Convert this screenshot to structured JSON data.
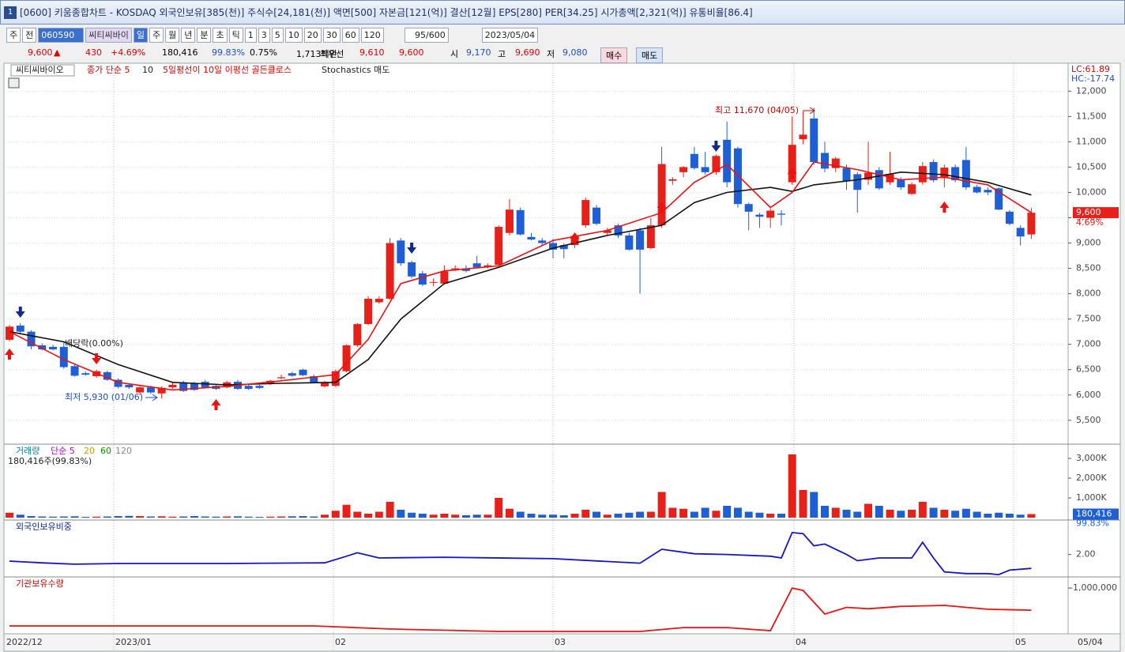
{
  "title_bar": {
    "icon": "1",
    "text": "[0600] 키움종합차트 - KOSDAQ 외국인보유[385(천)] 주식수[24,181(천)] 액면[500] 자본금[121(억)] 결산[12월] EPS[280] PER[34.25] 시가총액[2,321(억)] 유통비율[86.4]"
  },
  "toolbar": {
    "items": [
      "주",
      "전",
      "060590",
      "씨티씨바이",
      "일",
      "주",
      "월",
      "년",
      "분",
      "초",
      "틱",
      "1",
      "3",
      "5",
      "10",
      "20",
      "30",
      "60",
      "120",
      "95/600",
      "2023/05/04"
    ]
  },
  "info_bar": {
    "items": [
      "9,600",
      "▲",
      "430",
      "+4.69%",
      "180,416",
      "99.83%",
      "0.75%",
      "1,713백만",
      "최우선",
      "9,610",
      "9,600",
      "시",
      "9,170",
      "고",
      "9,690",
      "저",
      "9,080",
      "매수",
      "매도"
    ]
  },
  "chart": {
    "legend": [
      "씨티씨바이오",
      "종가 단순 5",
      "10",
      "5일평선이 10일 이평선 골든클로스",
      "Stochastics 매도"
    ],
    "corner_labels": [
      "LC:61.89",
      "HC:-17.74"
    ],
    "price_tag": [
      "9,600",
      "4.69%"
    ],
    "annotations": [
      "최고 11,670 (04/05)",
      "최저 5,930 (01/06)",
      "배당락(0.00%)"
    ],
    "ylim": [
      5060,
      12520
    ],
    "yticks": [
      {
        "value": 12000,
        "label": "12,000"
      },
      {
        "value": 11500,
        "label": "11,500"
      },
      {
        "value": 11000,
        "label": "11,000"
      },
      {
        "value": 10500,
        "label": "10,500"
      },
      {
        "value": 10000,
        "label": "10,000"
      },
      {
        "value": 9500,
        "label": "9,500"
      },
      {
        "value": 9000,
        "label": "9,000"
      },
      {
        "value": 8500,
        "label": "8,500"
      },
      {
        "value": 8000,
        "label": "8,000"
      },
      {
        "value": 7500,
        "label": "7,500"
      },
      {
        "value": 7000,
        "label": "7,000"
      },
      {
        "value": 6500,
        "label": "6,500"
      },
      {
        "value": 6000,
        "label": "6,000"
      },
      {
        "value": 5500,
        "label": "5,500"
      }
    ],
    "candles": [
      [
        7090,
        7380,
        7060,
        7350
      ],
      [
        7370,
        7420,
        7220,
        7250
      ],
      [
        7250,
        7280,
        6900,
        6960
      ],
      [
        6980,
        7020,
        6880,
        6900
      ],
      [
        6950,
        6990,
        6880,
        6900
      ],
      [
        6950,
        7050,
        6520,
        6550
      ],
      [
        6570,
        6600,
        6360,
        6380
      ],
      [
        6430,
        6460,
        6380,
        6400
      ],
      [
        6370,
        6500,
        6340,
        6470
      ],
      [
        6450,
        6480,
        6280,
        6300
      ],
      [
        6300,
        6330,
        6130,
        6160
      ],
      [
        6200,
        6230,
        6120,
        6150
      ],
      [
        6050,
        6200,
        6000,
        6150
      ],
      [
        6150,
        6180,
        6020,
        6050
      ],
      [
        6030,
        6170,
        5930,
        6140
      ],
      [
        6150,
        6260,
        6120,
        6200
      ],
      [
        6250,
        6280,
        6060,
        6080
      ],
      [
        6230,
        6260,
        6080,
        6100
      ],
      [
        6260,
        6300,
        6130,
        6150
      ],
      [
        6180,
        6210,
        6100,
        6120
      ],
      [
        6150,
        6280,
        6130,
        6250
      ],
      [
        6260,
        6300,
        6100,
        6120
      ],
      [
        6180,
        6210,
        6100,
        6120
      ],
      [
        6180,
        6200,
        6120,
        6140
      ],
      [
        6220,
        6300,
        6200,
        6280
      ],
      [
        6330,
        6400,
        6310,
        6350
      ],
      [
        6430,
        6460,
        6360,
        6380
      ],
      [
        6500,
        6520,
        6370,
        6390
      ],
      [
        6370,
        6400,
        6230,
        6250
      ],
      [
        6170,
        6280,
        6150,
        6250
      ],
      [
        6180,
        6500,
        6160,
        6470
      ],
      [
        6470,
        7000,
        6450,
        6980
      ],
      [
        6980,
        7420,
        6950,
        7400
      ],
      [
        7400,
        7950,
        7380,
        7900
      ],
      [
        7830,
        7950,
        7800,
        7900
      ],
      [
        7900,
        9100,
        7880,
        9000
      ],
      [
        9050,
        9100,
        8550,
        8600
      ],
      [
        8620,
        8650,
        8300,
        8340
      ],
      [
        8400,
        8450,
        8150,
        8180
      ],
      [
        8220,
        8300,
        8150,
        8230
      ],
      [
        8200,
        8560,
        8180,
        8440
      ],
      [
        8480,
        8560,
        8450,
        8500
      ],
      [
        8500,
        8560,
        8420,
        8450
      ],
      [
        8600,
        8750,
        8500,
        8520
      ],
      [
        8530,
        8600,
        8500,
        8560
      ],
      [
        8570,
        9350,
        8550,
        9320
      ],
      [
        9200,
        9870,
        9150,
        9660
      ],
      [
        9650,
        9700,
        9150,
        9170
      ],
      [
        9120,
        9200,
        9050,
        9070
      ],
      [
        9050,
        9100,
        8950,
        9000
      ],
      [
        9000,
        9080,
        8700,
        8870
      ],
      [
        8960,
        9000,
        8700,
        8880
      ],
      [
        8960,
        9150,
        8900,
        9140
      ],
      [
        9350,
        9900,
        9300,
        9850
      ],
      [
        9700,
        9750,
        9350,
        9380
      ],
      [
        9200,
        9300,
        9150,
        9250
      ],
      [
        9350,
        9380,
        9100,
        9150
      ],
      [
        9150,
        9200,
        8850,
        8870
      ],
      [
        9250,
        9300,
        8000,
        8870
      ],
      [
        8900,
        9500,
        8880,
        9350
      ],
      [
        9350,
        10900,
        9300,
        10560
      ],
      [
        10230,
        10300,
        10150,
        10260
      ],
      [
        10400,
        10520,
        10300,
        10500
      ],
      [
        10760,
        10900,
        10450,
        10480
      ],
      [
        10500,
        10800,
        10350,
        10400
      ],
      [
        10400,
        10750,
        10350,
        10720
      ],
      [
        11040,
        11400,
        10100,
        10200
      ],
      [
        10870,
        10900,
        9700,
        9770
      ],
      [
        9770,
        9800,
        9250,
        9620
      ],
      [
        9560,
        9600,
        9300,
        9520
      ],
      [
        9500,
        9680,
        9300,
        9640
      ],
      [
        9580,
        9650,
        9350,
        9560
      ],
      [
        10200,
        11500,
        10150,
        10940
      ],
      [
        11050,
        11600,
        10950,
        11140
      ],
      [
        11460,
        11670,
        10550,
        10600
      ],
      [
        10780,
        11000,
        10400,
        10470
      ],
      [
        10480,
        10700,
        10400,
        10670
      ],
      [
        10480,
        10550,
        10050,
        10220
      ],
      [
        10360,
        10400,
        9600,
        10050
      ],
      [
        10250,
        11000,
        10150,
        10390
      ],
      [
        10440,
        10500,
        10050,
        10080
      ],
      [
        10200,
        10800,
        10150,
        10360
      ],
      [
        10250,
        10300,
        10050,
        10100
      ],
      [
        9970,
        10200,
        9950,
        10160
      ],
      [
        10200,
        10600,
        10150,
        10520
      ],
      [
        10600,
        10650,
        10200,
        10240
      ],
      [
        10280,
        10550,
        10100,
        10490
      ],
      [
        10500,
        10550,
        10200,
        10240
      ],
      [
        10640,
        10900,
        10050,
        10100
      ],
      [
        10110,
        10150,
        9980,
        10000
      ],
      [
        10050,
        10100,
        9950,
        10000
      ],
      [
        10080,
        10100,
        9650,
        9660
      ],
      [
        9620,
        9650,
        9350,
        9380
      ],
      [
        9300,
        9350,
        8950,
        9130
      ],
      [
        9170,
        9690,
        9080,
        9600
      ]
    ],
    "ma_index": [
      0,
      5,
      10,
      15,
      20,
      25,
      30,
      33,
      36,
      40,
      45,
      50,
      55,
      60,
      63,
      66,
      70,
      72,
      74,
      78,
      82,
      86,
      90,
      94
    ],
    "ma5": [
      7250,
      6700,
      6250,
      6100,
      6170,
      6280,
      6400,
      7100,
      8200,
      8450,
      8550,
      9050,
      9250,
      9600,
      10200,
      10550,
      9700,
      10000,
      10600,
      10450,
      10250,
      10300,
      10150,
      9600
    ],
    "ma10": [
      7250,
      7050,
      6600,
      6250,
      6200,
      6230,
      6250,
      6700,
      7500,
      8200,
      8520,
      8900,
      9150,
      9350,
      9800,
      10000,
      10100,
      10020,
      10150,
      10250,
      10400,
      10350,
      10200,
      9950
    ],
    "dates": [
      "2022/12",
      "2023/01",
      "02",
      "03",
      "04",
      "05",
      "05/04"
    ]
  },
  "volume": {
    "legend": [
      "거래량",
      "단순 5",
      "20",
      "60",
      "120"
    ],
    "caption": "180,416주(99.83%)",
    "tag": [
      "180,416",
      "99.83%"
    ],
    "ylim": [
      0,
      3600000
    ],
    "yticks": [
      {
        "value": 3000000,
        "label": "3,000K"
      },
      {
        "value": 2000000,
        "label": "2,000K"
      },
      {
        "value": 1000000,
        "label": "1,000K"
      }
    ],
    "values": [
      250000,
      150000,
      80000,
      60000,
      50000,
      60000,
      70000,
      40000,
      50000,
      60000,
      80000,
      90000,
      80000,
      60000,
      70000,
      50000,
      60000,
      80000,
      60000,
      50000,
      60000,
      70000,
      50000,
      40000,
      50000,
      60000,
      70000,
      80000,
      60000,
      150000,
      350000,
      650000,
      300000,
      200000,
      300000,
      800000,
      400000,
      250000,
      200000,
      150000,
      200000,
      150000,
      120000,
      150000,
      150000,
      1000000,
      450000,
      300000,
      200000,
      150000,
      150000,
      120000,
      200000,
      400000,
      300000,
      150000,
      200000,
      250000,
      300000,
      300000,
      1300000,
      500000,
      450000,
      300000,
      500000,
      350000,
      600000,
      500000,
      300000,
      250000,
      200000,
      200000,
      3200000,
      1400000,
      1300000,
      600000,
      500000,
      400000,
      300000,
      700000,
      600000,
      400000,
      350000,
      400000,
      800000,
      500000,
      400000,
      350000,
      450000,
      300000,
      200000,
      250000,
      200000,
      150000,
      180416
    ]
  },
  "foreign": {
    "label": "외국인보유비중",
    "ylim": [
      1.4,
      2.9
    ],
    "yticks": [
      {
        "value": 2,
        "label": "2.00"
      }
    ],
    "index": [
      0,
      3,
      6,
      10,
      20,
      29,
      31,
      32,
      34,
      40,
      50,
      58,
      60,
      63,
      66,
      70,
      71,
      72,
      73,
      74,
      75,
      77,
      78,
      80,
      83,
      84,
      85,
      86,
      88,
      90,
      91,
      92,
      94
    ],
    "values": [
      1.81,
      1.76,
      1.72,
      1.74,
      1.74,
      1.76,
      1.95,
      2.05,
      1.9,
      1.92,
      1.88,
      1.75,
      2.15,
      2.02,
      2.0,
      1.95,
      1.9,
      2.63,
      2.6,
      2.25,
      2.3,
      2.0,
      1.82,
      1.9,
      1.9,
      2.35,
      1.9,
      1.5,
      1.45,
      1.45,
      1.42,
      1.55,
      1.6
    ]
  },
  "institution": {
    "label": "기관보유수량",
    "ylim": [
      -1950000,
      -900000
    ],
    "yticks": [
      {
        "value": -1000000,
        "label": "-1,000,000"
      }
    ],
    "index": [
      0,
      28,
      35,
      45,
      58,
      62,
      66,
      70,
      72,
      73,
      75,
      77,
      79,
      82,
      86,
      88,
      90,
      94
    ],
    "values": [
      -1786000,
      -1786000,
      -1850000,
      -1900000,
      -1900000,
      -1820000,
      -1820000,
      -1884000,
      -1000000,
      -1050000,
      -1540000,
      -1400000,
      -1430000,
      -1380000,
      -1360000,
      -1400000,
      -1440000,
      -1460000
    ]
  }
}
